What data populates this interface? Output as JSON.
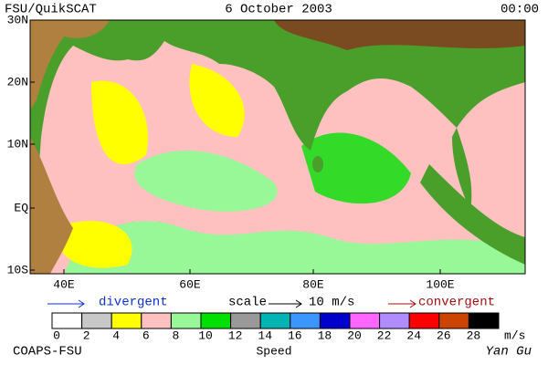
{
  "header": {
    "left": "FSU/QuikSCAT",
    "center": "6 October 2003",
    "right": "00:00"
  },
  "map": {
    "lat_labels": [
      "30N",
      "20N",
      "10N",
      "EQ",
      "10S"
    ],
    "lon_labels": [
      "40E",
      "60E",
      "80E",
      "100E"
    ]
  },
  "legend": {
    "divergent": "divergent",
    "scale": "scale",
    "scale_value": "10 m/s",
    "convergent": "convergent"
  },
  "colorbar": {
    "title": "Speed",
    "unit": "m/s",
    "ticks": [
      0,
      2,
      4,
      6,
      8,
      10,
      12,
      14,
      16,
      18,
      20,
      22,
      24,
      26,
      28
    ],
    "colors": [
      "#ffffff",
      "#c8c8c8",
      "#ffff00",
      "#ffc0c0",
      "#98f898",
      "#00e000",
      "#999999",
      "#00b4b4",
      "#3c96ff",
      "#0000cc",
      "#ff66ff",
      "#b08cff",
      "#ff0000",
      "#cc4400",
      "#000000"
    ]
  },
  "footer": {
    "left": "COAPS-FSU",
    "right": "Yan Gu"
  }
}
